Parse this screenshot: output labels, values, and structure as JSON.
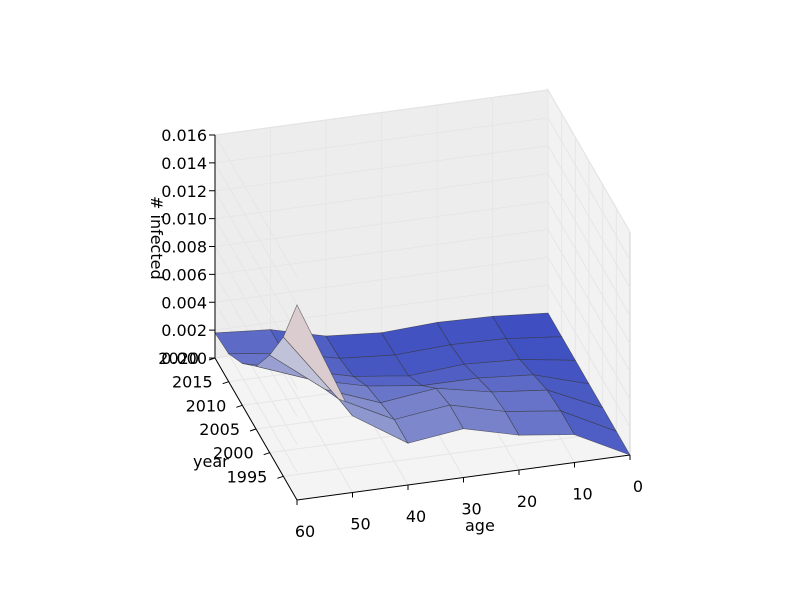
{
  "chart_data": {
    "type": "surface3d",
    "title": "",
    "xlabel": "age",
    "ylabel": "year",
    "zlabel": "# infected",
    "x_ticks": [
      "0",
      "10",
      "20",
      "30",
      "40",
      "50",
      "60"
    ],
    "y_ticks": [
      "1995",
      "2000",
      "2005",
      "2010",
      "2015",
      "2020"
    ],
    "z_ticks": [
      "0.000",
      "0.002",
      "0.004",
      "0.006",
      "0.008",
      "0.010",
      "0.012",
      "0.014",
      "0.016"
    ],
    "xlim": [
      0,
      60
    ],
    "ylim": [
      1990,
      2020
    ],
    "zlim": [
      0,
      0.016
    ],
    "grid": true,
    "colormap": "coolwarm",
    "colormap_low": "#3b4cc0",
    "colormap_mid": "#dddddd",
    "colormap_high": "#b40426",
    "pane_color": "#f2f2f2",
    "grid_color": "#e6e6e6",
    "age": [
      0,
      10,
      20,
      30,
      40,
      50,
      60
    ],
    "year": [
      1990,
      1995,
      2000,
      2005,
      2010,
      2015,
      2020
    ],
    "values": [
      [
        0.0,
        0.002,
        0.0025,
        0.0035,
        0.003,
        0.0055,
        0.014
      ],
      [
        0.0,
        0.002,
        0.0025,
        0.0035,
        0.003,
        0.005,
        0.01
      ],
      [
        0.0,
        0.0018,
        0.0022,
        0.003,
        0.0025,
        0.004,
        0.007
      ],
      [
        0.0,
        0.0012,
        0.0015,
        0.0015,
        0.002,
        0.003,
        0.0045
      ],
      [
        0.0,
        0.0006,
        0.0008,
        0.0005,
        0.001,
        0.002,
        0.003
      ],
      [
        0.0,
        0.0004,
        0.0005,
        0.0003,
        0.0006,
        0.0015,
        0.002
      ],
      [
        0.0,
        0.0003,
        0.0004,
        0.0002,
        0.0005,
        0.0015,
        0.0018
      ]
    ]
  }
}
